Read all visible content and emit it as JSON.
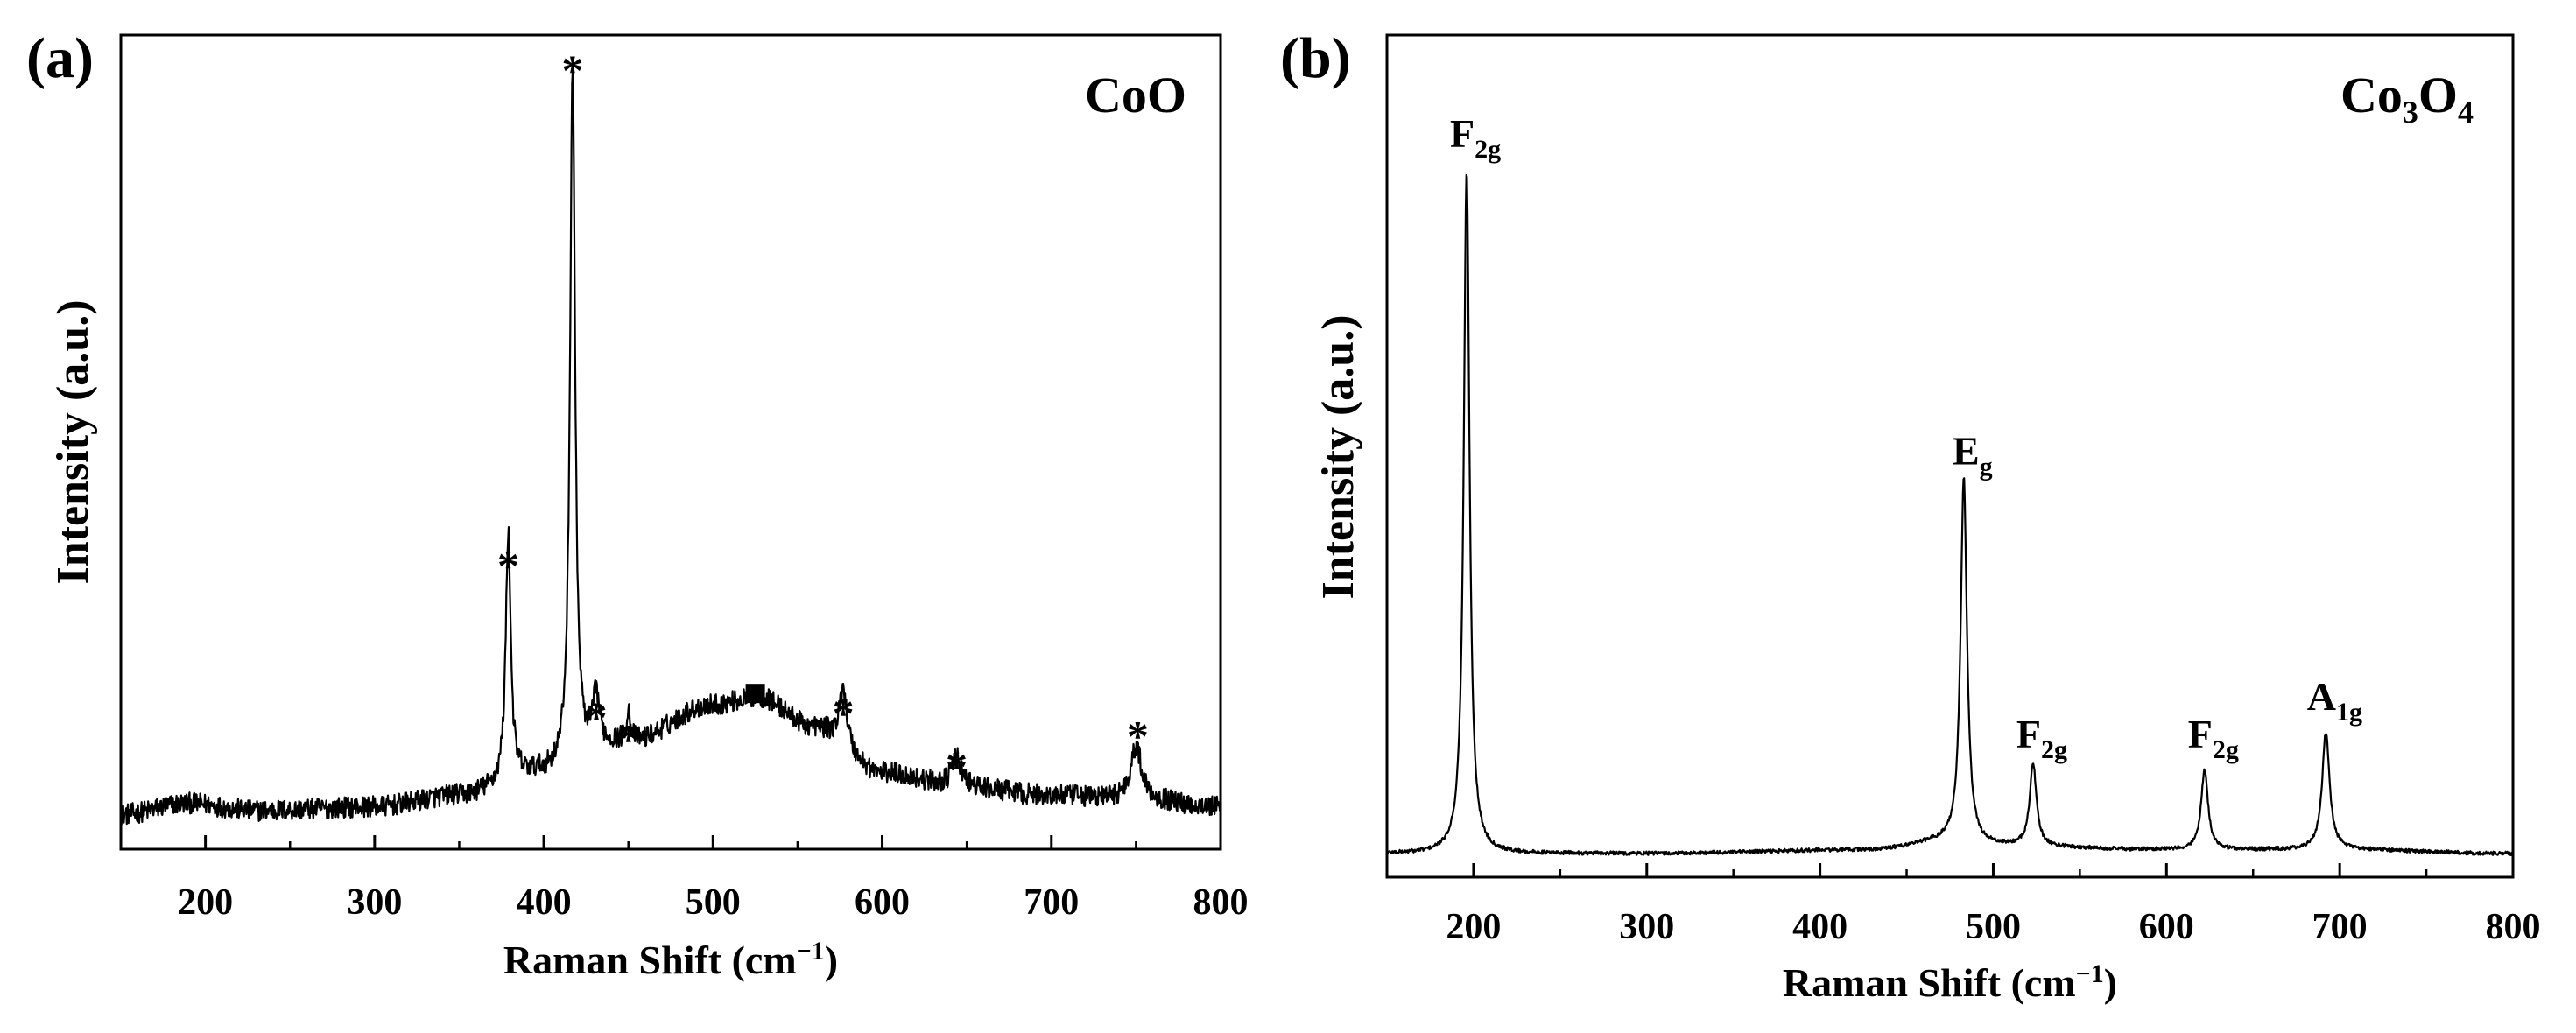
{
  "colors": {
    "line": "#000000",
    "background": "#ffffff"
  },
  "chart_data": [
    {
      "type": "line",
      "panel_label": "(a)",
      "title_parts": [
        {
          "text": "CoO",
          "sub": false
        }
      ],
      "xlabel": "Raman Shift (cm",
      "xlabel_sup": "−1",
      "xlabel_tail": ")",
      "ylabel": "Intensity (a.u.)",
      "xlim": [
        150,
        800
      ],
      "ylim": [
        0,
        100
      ],
      "xticks": [
        200,
        300,
        400,
        500,
        600,
        700,
        800
      ],
      "ytick_labels": false,
      "series": [
        {
          "name": "CoO",
          "baseline_points": [
            [
              150,
              2.5
            ],
            [
              190,
              4.0
            ],
            [
              230,
              3.0
            ],
            [
              300,
              3.5
            ],
            [
              350,
              5.0
            ],
            [
              400,
              8.0
            ],
            [
              450,
              12.0
            ],
            [
              500,
              17.0
            ],
            [
              527,
              18.0
            ],
            [
              560,
              14.0
            ],
            [
              600,
              8.0
            ],
            [
              650,
              6.0
            ],
            [
              700,
              5.0
            ],
            [
              750,
              4.5
            ],
            [
              800,
              3.5
            ]
          ],
          "peaks": [
            {
              "center": 379,
              "height": 33.0,
              "width": 1.8
            },
            {
              "center": 417,
              "height": 92.0,
              "width": 1.8
            },
            {
              "center": 431,
              "height": 7.0,
              "width": 2.5
            },
            {
              "center": 450,
              "height": 4.0,
              "width": 1.5
            },
            {
              "center": 577,
              "height": 8.0,
              "width": 2.5
            },
            {
              "center": 644,
              "height": 4.0,
              "width": 3.5
            },
            {
              "center": 750,
              "height": 7.0,
              "width": 4.0
            }
          ],
          "noise_amplitude": 1.4
        }
      ],
      "annotations": [
        {
          "text": "*",
          "x": 379,
          "y": 36.0
        },
        {
          "text": "*",
          "x": 417,
          "y": 101.5
        },
        {
          "text": "*",
          "x": 431,
          "y": 16.0
        },
        {
          "text": "*",
          "x": 450,
          "y": 13.0
        },
        {
          "text": "*",
          "x": 577,
          "y": 16.5
        },
        {
          "text": "*",
          "x": 644,
          "y": 9.5
        },
        {
          "text": "*",
          "x": 751,
          "y": 13.5
        }
      ],
      "square_markers": [
        {
          "x": 525,
          "y": 18.5
        }
      ]
    },
    {
      "type": "line",
      "panel_label": "(b)",
      "title_parts": [
        {
          "text": "Co",
          "sub": false
        },
        {
          "text": "3",
          "sub": true
        },
        {
          "text": "O",
          "sub": false
        },
        {
          "text": "4",
          "sub": true
        }
      ],
      "xlabel": "Raman Shift (cm",
      "xlabel_sup": "−1",
      "xlabel_tail": ")",
      "ylabel": "Intensity (a.u.)",
      "xlim": [
        150,
        800
      ],
      "ylim": [
        0,
        100
      ],
      "xticks": [
        200,
        300,
        400,
        500,
        600,
        700,
        800
      ],
      "ytick_labels": false,
      "series": [
        {
          "name": "Co3O4",
          "baseline_points": [
            [
              150,
              1.5
            ],
            [
              300,
              1.5
            ],
            [
              430,
              2.0
            ],
            [
              470,
              3.0
            ],
            [
              500,
              2.5
            ],
            [
              600,
              2.0
            ],
            [
              700,
              2.0
            ],
            [
              800,
              1.5
            ]
          ],
          "peaks": [
            {
              "center": 196,
              "height": 90.5,
              "width": 2.0
            },
            {
              "center": 483,
              "height": 48.5,
              "width": 2.2
            },
            {
              "center": 523,
              "height": 11.0,
              "width": 2.3
            },
            {
              "center": 622,
              "height": 10.5,
              "width": 2.4
            },
            {
              "center": 692,
              "height": 15.5,
              "width": 2.6
            }
          ],
          "noise_amplitude": 0.25
        }
      ],
      "annotations": [
        {
          "base": "F",
          "sub": "2g",
          "x": 196,
          "y": 95.0
        },
        {
          "base": "E",
          "sub": "g",
          "x": 483,
          "y": 53.0
        },
        {
          "base": "F",
          "sub": "2g",
          "x": 523,
          "y": 15.5
        },
        {
          "base": "F",
          "sub": "2g",
          "x": 622,
          "y": 15.5
        },
        {
          "base": "A",
          "sub": "1g",
          "x": 692,
          "y": 20.5
        }
      ]
    }
  ]
}
